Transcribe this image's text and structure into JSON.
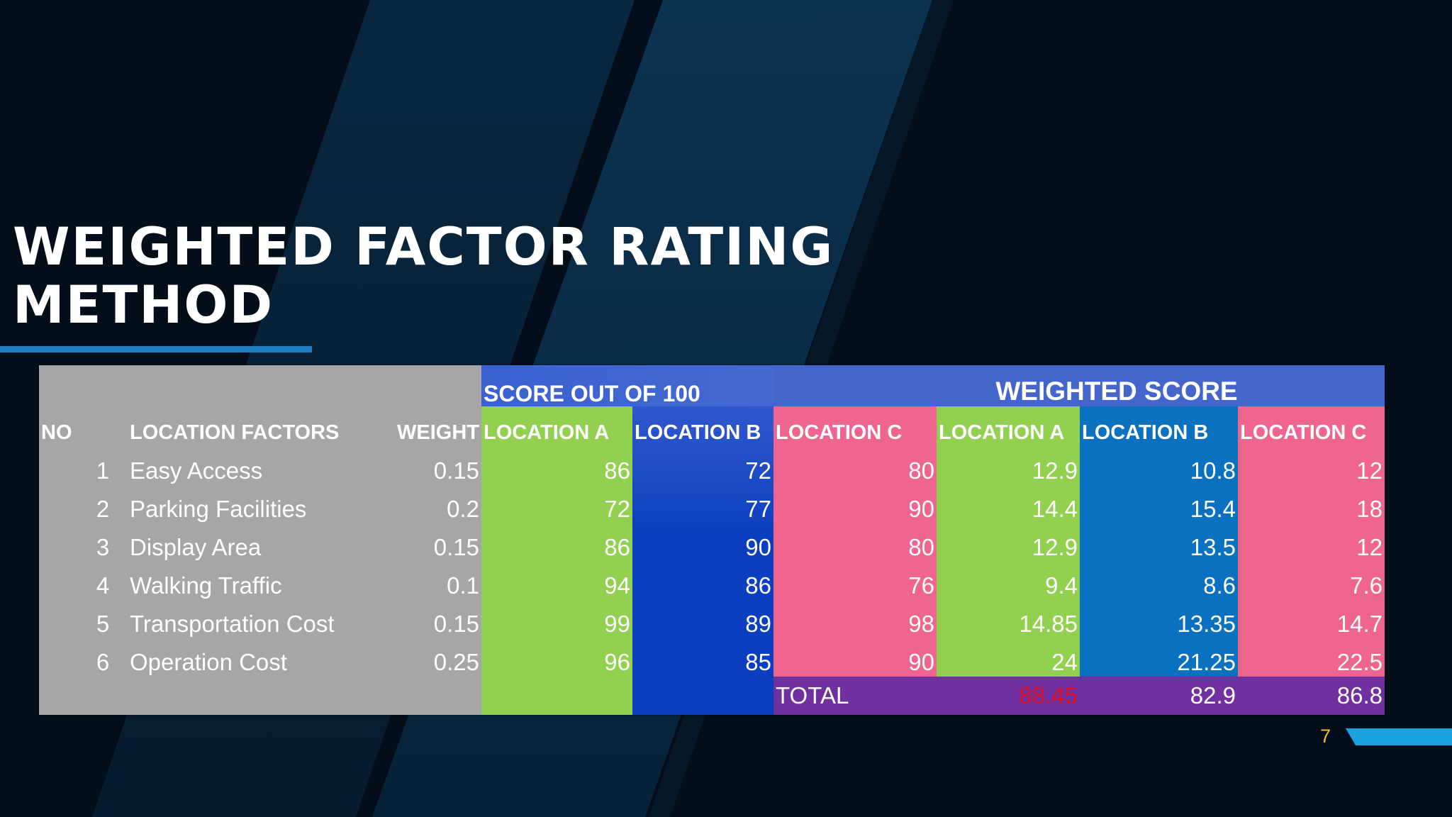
{
  "slide": {
    "title_line1": "WEIGHTED FACTOR RATING",
    "title_line2": "METHOD",
    "page_number": "7"
  },
  "table": {
    "group_headers": {
      "score": "SCORE OUT OF 100",
      "weighted": "WEIGHTED SCORE"
    },
    "columns": {
      "no": "NO",
      "factor": "LOCATION FACTORS",
      "weight": "WEIGHT",
      "score_a": "LOCATION A",
      "score_b": "LOCATION B",
      "score_c": "LOCATION C",
      "w_a": "LOCATION A",
      "w_b": "LOCATION B",
      "w_c": "LOCATION C"
    },
    "rows": [
      {
        "no": "1",
        "factor": "Easy Access",
        "weight": "0.15",
        "a": "86",
        "b": "72",
        "c": "80",
        "wa": "12.9",
        "wb": "10.8",
        "wc": "12"
      },
      {
        "no": "2",
        "factor": "Parking Facilities",
        "weight": "0.2",
        "a": "72",
        "b": "77",
        "c": "90",
        "wa": "14.4",
        "wb": "15.4",
        "wc": "18"
      },
      {
        "no": "3",
        "factor": "Display Area",
        "weight": "0.15",
        "a": "86",
        "b": "90",
        "c": "80",
        "wa": "12.9",
        "wb": "13.5",
        "wc": "12"
      },
      {
        "no": "4",
        "factor": "Walking Traffic",
        "weight": "0.1",
        "a": "94",
        "b": "86",
        "c": "76",
        "wa": "9.4",
        "wb": "8.6",
        "wc": "7.6"
      },
      {
        "no": "5",
        "factor": "Transportation Cost",
        "weight": "0.15",
        "a": "99",
        "b": "89",
        "c": "98",
        "wa": "14.85",
        "wb": "13.35",
        "wc": "14.7"
      },
      {
        "no": "6",
        "factor": "Operation Cost",
        "weight": "0.25",
        "a": "96",
        "b": "85",
        "c": "90",
        "wa": "24",
        "wb": "21.25",
        "wc": "22.5"
      }
    ],
    "total": {
      "label": "TOTAL",
      "wa": "88.45",
      "wb": "82.9",
      "wc": "86.8"
    }
  },
  "colors": {
    "background": "#040e1a",
    "grey_section": "#a6a5a7",
    "green": "#92d050",
    "blue_score": "#0b3fbf",
    "blue_weighted": "#0a70c0",
    "pink": "#f06490",
    "purple": "#7030a0",
    "header_blue": "#4466cc",
    "total_highlight": "#e01020"
  }
}
